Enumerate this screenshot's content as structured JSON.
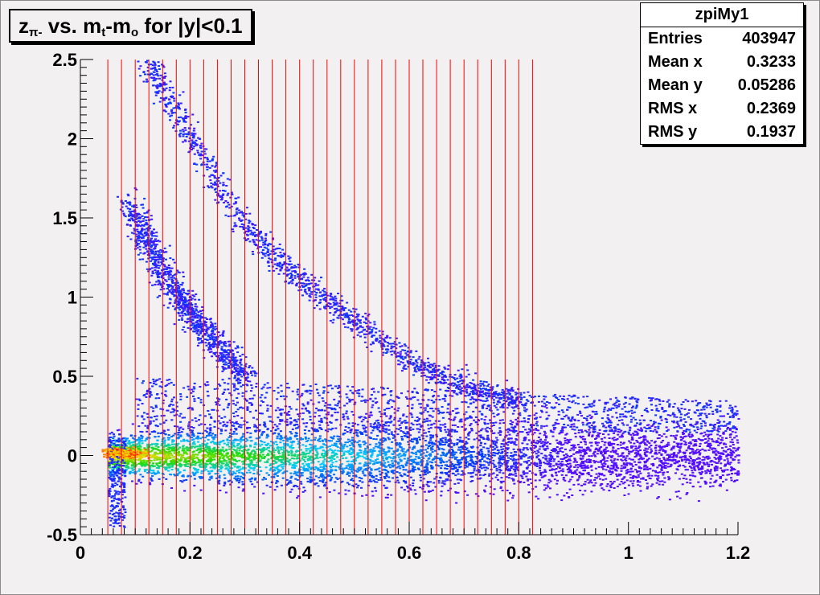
{
  "title": {
    "z_symbol": "z",
    "z_subscript": "π-",
    "vs_text": " vs. m",
    "mt_subscript": "t",
    "dash_m": "-m",
    "m0_subscript": "o",
    "cut_text": " for |y|<0.1"
  },
  "stats": {
    "name": "zpiMy1",
    "rows": [
      {
        "label": "Entries",
        "value": "403947"
      },
      {
        "label": "Mean x",
        "value": "0.3233"
      },
      {
        "label": "Mean y",
        "value": "0.05286"
      },
      {
        "label": "RMS x",
        "value": "0.2369"
      },
      {
        "label": "RMS y",
        "value": "0.1937"
      }
    ]
  },
  "colors": {
    "background": "#f2f0f0",
    "plot_area": "#f2f0f0",
    "grid_lines": "#ff0000",
    "palette_low": "#6a00ff",
    "palette_mid": "#00ccff",
    "palette_midhigh": "#22dd00",
    "palette_high": "#ff2200"
  },
  "chart_data": {
    "type": "heatmap",
    "title": "zπ- vs. mt-mo for |y|<0.1",
    "xlim": [
      0,
      1.2
    ],
    "ylim": [
      -0.5,
      2.5
    ],
    "x_ticks": [
      "0",
      "0.2",
      "0.4",
      "0.6",
      "0.8",
      "1",
      "1.2"
    ],
    "y_ticks": [
      "-0.5",
      "0",
      "0.5",
      "1",
      "1.5",
      "2",
      "2.5"
    ],
    "vertical_lines_x_start": 0.05,
    "vertical_lines_x_step": 0.025,
    "vertical_lines_count": 32,
    "band_center_y": 0,
    "peak": {
      "x": 0.08,
      "y": 0.02
    },
    "upper_curve_points": [
      [
        0.12,
        2.5
      ],
      [
        0.2,
        2.0
      ],
      [
        0.3,
        1.45
      ],
      [
        0.4,
        1.1
      ],
      [
        0.5,
        0.85
      ],
      [
        0.6,
        0.6
      ],
      [
        0.7,
        0.45
      ],
      [
        0.8,
        0.35
      ]
    ],
    "lower_curve_points": [
      [
        0.09,
        1.6
      ],
      [
        0.12,
        1.35
      ],
      [
        0.16,
        1.1
      ],
      [
        0.2,
        0.9
      ],
      [
        0.25,
        0.7
      ],
      [
        0.3,
        0.5
      ]
    ]
  }
}
